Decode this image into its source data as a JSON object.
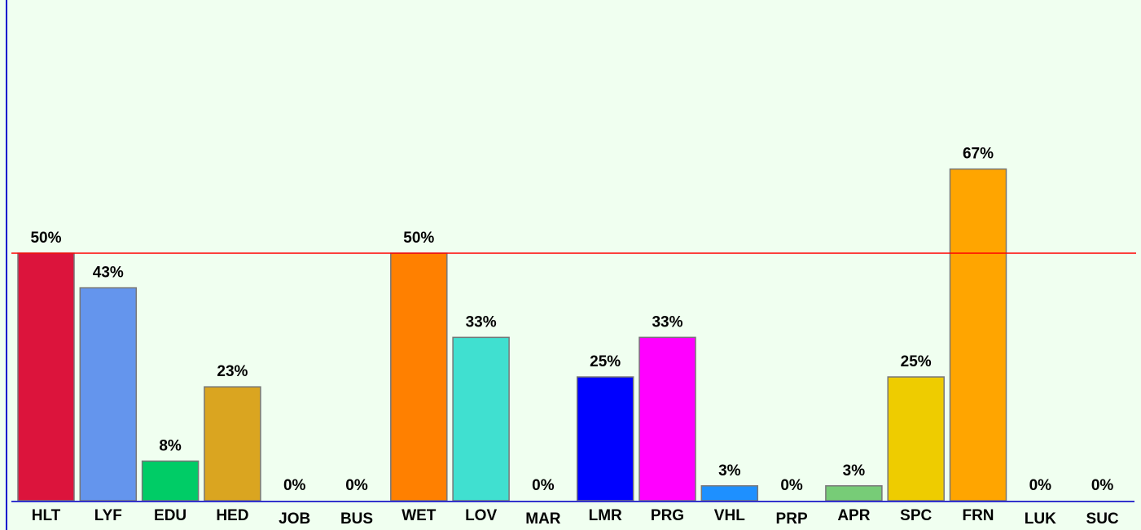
{
  "chart_data": {
    "type": "bar",
    "categories": [
      "HLT",
      "LYF",
      "EDU",
      "HED",
      "JOB",
      "BUS",
      "WET",
      "LOV",
      "MAR",
      "LMR",
      "PRG",
      "VHL",
      "PRP",
      "APR",
      "SPC",
      "FRN",
      "LUK",
      "SUC"
    ],
    "values": [
      50,
      43,
      8,
      23,
      0,
      0,
      50,
      33,
      0,
      25,
      33,
      3,
      0,
      3,
      25,
      67,
      0,
      0
    ],
    "value_labels": [
      "50%",
      "43%",
      "8%",
      "23%",
      "0%",
      "0%",
      "50%",
      "33%",
      "0%",
      "25%",
      "33%",
      "3%",
      "0%",
      "3%",
      "25%",
      "67%",
      "0%",
      "0%"
    ],
    "colors": [
      "#dc143c",
      "#6495ed",
      "#00cc66",
      "#daa520",
      "#888888",
      "#888888",
      "#ff8000",
      "#40e0d0",
      "#888888",
      "#0000ff",
      "#ff00ff",
      "#1e90ff",
      "#888888",
      "#77cc77",
      "#eecc00",
      "#ffa500",
      "#888888",
      "#888888"
    ],
    "reference_line": {
      "value": 50,
      "color": "#ff0000"
    }
  }
}
